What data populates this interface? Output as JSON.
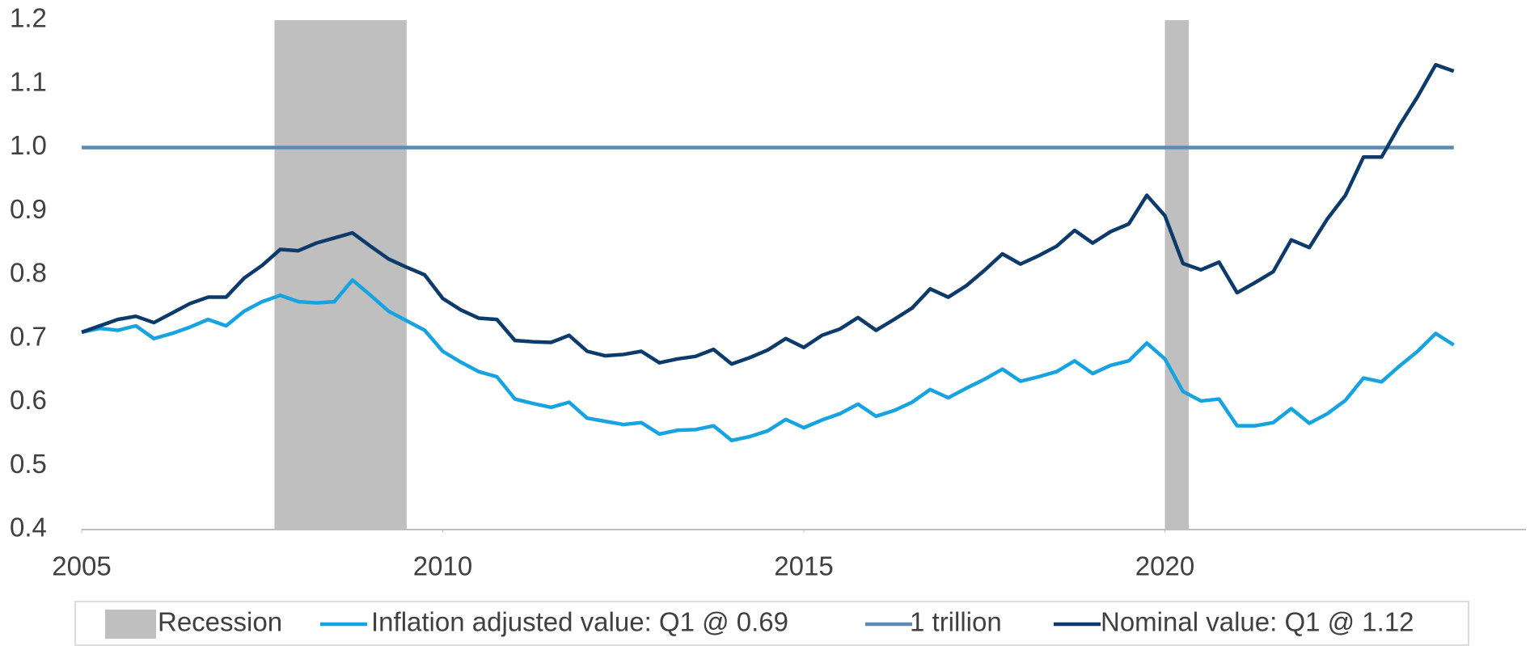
{
  "chart_data": {
    "type": "line",
    "xlim": [
      2005,
      2025
    ],
    "xticks": [
      2005,
      2010,
      2015,
      2020
    ],
    "ylim": [
      0.4,
      1.2
    ],
    "yticks": [
      {
        "value": 0.4,
        "label": "0.4"
      },
      {
        "value": 0.5,
        "label": "0.5"
      },
      {
        "value": 0.6,
        "label": "0.6"
      },
      {
        "value": 0.7,
        "label": "0.7"
      },
      {
        "value": 0.8,
        "label": "0.8"
      },
      {
        "value": 0.9,
        "label": "0.9"
      },
      {
        "value": 1.0,
        "label": "1.0"
      },
      {
        "value": 1.1,
        "label": "1.1"
      },
      {
        "value": 1.2,
        "label": "1.2"
      }
    ],
    "grid": false,
    "legend": "bottom",
    "recession": {
      "name": "Recession",
      "color": "#bfbfbf",
      "spans": [
        [
          2007.67,
          2009.5
        ],
        [
          2020.0,
          2020.33
        ]
      ]
    },
    "series": [
      {
        "name": "Inflation adjusted value: Q1 @ 0.69",
        "color": "#16a3e0",
        "x": [
          2005,
          2005.25,
          2005.5,
          2005.75,
          2006,
          2006.25,
          2006.5,
          2006.75,
          2007,
          2007.25,
          2007.5,
          2007.75,
          2008,
          2008.25,
          2008.5,
          2008.75,
          2009,
          2009.25,
          2009.5,
          2009.75,
          2010,
          2010.25,
          2010.5,
          2010.75,
          2011,
          2011.25,
          2011.5,
          2011.75,
          2012,
          2012.25,
          2012.5,
          2012.75,
          2013,
          2013.25,
          2013.5,
          2013.75,
          2014,
          2014.25,
          2014.5,
          2014.75,
          2015,
          2015.25,
          2015.5,
          2015.75,
          2016,
          2016.25,
          2016.5,
          2016.75,
          2017,
          2017.25,
          2017.5,
          2017.75,
          2018,
          2018.25,
          2018.5,
          2018.75,
          2019,
          2019.25,
          2019.5,
          2019.75,
          2020,
          2020.25,
          2020.5,
          2020.75,
          2021,
          2021.25,
          2021.5,
          2021.75,
          2022,
          2022.25,
          2022.5,
          2022.75,
          2023,
          2023.25,
          2023.5,
          2023.75,
          2024
        ],
        "values": [
          0.71,
          0.716,
          0.713,
          0.72,
          0.7,
          0.708,
          0.718,
          0.73,
          0.72,
          0.743,
          0.758,
          0.768,
          0.758,
          0.756,
          0.758,
          0.792,
          0.768,
          0.743,
          0.728,
          0.713,
          0.68,
          0.663,
          0.648,
          0.64,
          0.605,
          0.598,
          0.592,
          0.6,
          0.575,
          0.57,
          0.565,
          0.568,
          0.55,
          0.556,
          0.557,
          0.563,
          0.54,
          0.546,
          0.555,
          0.573,
          0.56,
          0.572,
          0.582,
          0.597,
          0.578,
          0.587,
          0.6,
          0.62,
          0.607,
          0.622,
          0.636,
          0.652,
          0.633,
          0.64,
          0.648,
          0.665,
          0.645,
          0.658,
          0.665,
          0.693,
          0.668,
          0.617,
          0.602,
          0.605,
          0.563,
          0.563,
          0.568,
          0.59,
          0.567,
          0.582,
          0.603,
          0.638,
          0.632,
          0.657,
          0.68,
          0.708,
          0.69
        ]
      },
      {
        "name": "1 trillion",
        "color": "#5b8ab4",
        "x": [
          2005,
          2024
        ],
        "values": [
          1,
          1
        ]
      },
      {
        "name": "Nominal value: Q1 @ 1.12",
        "color": "#0c3a6b",
        "x": [
          2005,
          2005.25,
          2005.5,
          2005.75,
          2006,
          2006.25,
          2006.5,
          2006.75,
          2007,
          2007.25,
          2007.5,
          2007.75,
          2008,
          2008.25,
          2008.5,
          2008.75,
          2009,
          2009.25,
          2009.5,
          2009.75,
          2010,
          2010.25,
          2010.5,
          2010.75,
          2011,
          2011.25,
          2011.5,
          2011.75,
          2012,
          2012.25,
          2012.5,
          2012.75,
          2013,
          2013.25,
          2013.5,
          2013.75,
          2014,
          2014.25,
          2014.5,
          2014.75,
          2015,
          2015.25,
          2015.5,
          2015.75,
          2016,
          2016.25,
          2016.5,
          2016.75,
          2017,
          2017.25,
          2017.5,
          2017.75,
          2018,
          2018.25,
          2018.5,
          2018.75,
          2019,
          2019.25,
          2019.5,
          2019.75,
          2020,
          2020.25,
          2020.5,
          2020.75,
          2021,
          2021.25,
          2021.5,
          2021.75,
          2022,
          2022.25,
          2022.5,
          2022.75,
          2023,
          2023.25,
          2023.5,
          2023.75,
          2024
        ],
        "values": [
          0.71,
          0.72,
          0.73,
          0.735,
          0.725,
          0.74,
          0.755,
          0.765,
          0.765,
          0.795,
          0.815,
          0.84,
          0.838,
          0.85,
          0.858,
          0.866,
          0.845,
          0.825,
          0.812,
          0.8,
          0.763,
          0.745,
          0.732,
          0.73,
          0.697,
          0.695,
          0.694,
          0.705,
          0.68,
          0.673,
          0.675,
          0.68,
          0.662,
          0.668,
          0.672,
          0.683,
          0.66,
          0.67,
          0.682,
          0.7,
          0.686,
          0.705,
          0.715,
          0.733,
          0.713,
          0.73,
          0.748,
          0.778,
          0.765,
          0.783,
          0.807,
          0.833,
          0.817,
          0.83,
          0.845,
          0.87,
          0.85,
          0.868,
          0.88,
          0.925,
          0.893,
          0.818,
          0.808,
          0.82,
          0.772,
          0.788,
          0.805,
          0.855,
          0.843,
          0.888,
          0.925,
          0.985,
          0.985,
          1.035,
          1.08,
          1.13,
          1.12
        ]
      }
    ]
  }
}
